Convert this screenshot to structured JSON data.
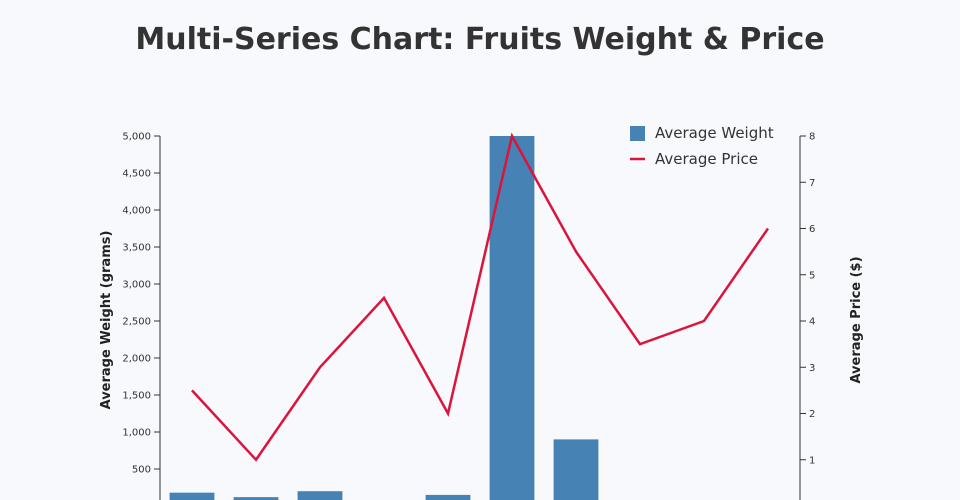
{
  "chart_data": {
    "type": "bar",
    "title": "Multi-Series Chart: Fruits Weight & Price",
    "categories": [
      "",
      "",
      "",
      "",
      "",
      "",
      "",
      "",
      "",
      ""
    ],
    "series": [
      {
        "name": "Average Weight",
        "type": "bar",
        "axis": "left",
        "values": [
          180,
          120,
          200,
          null,
          150,
          5000,
          900,
          null,
          null,
          null
        ]
      },
      {
        "name": "Average Price",
        "type": "line",
        "axis": "right",
        "values": [
          2.5,
          1,
          3,
          4.5,
          2,
          8,
          5.5,
          3.5,
          4,
          6
        ]
      }
    ],
    "y_left": {
      "label": "Average Weight (grams)",
      "ylim": [
        0,
        5000
      ],
      "ticks": [
        "500",
        "1,000",
        "1,500",
        "2,000",
        "2,500",
        "3,000",
        "3,500",
        "4,000",
        "4,500",
        "5,000"
      ]
    },
    "y_right": {
      "label": "Average Price ($)",
      "ylim": [
        0,
        8
      ],
      "ticks": [
        "1",
        "2",
        "3",
        "4",
        "5",
        "6",
        "7",
        "8"
      ]
    },
    "legend_position": "top-right",
    "grid": false,
    "colors": {
      "weight": "#4682b4",
      "price": "#dc143c"
    }
  }
}
